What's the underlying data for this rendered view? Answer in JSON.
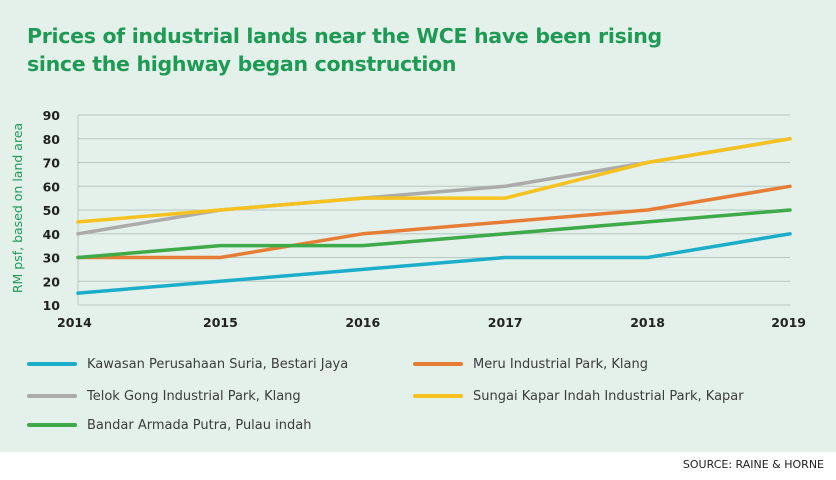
{
  "title": {
    "line1": "Prices of industrial lands near the WCE have been rising",
    "line2": "since the highway began construction"
  },
  "source": "SOURCE: RAINE & HORNE",
  "colors": {
    "background": "#e3f1ea",
    "title": "#1f9a55",
    "grid": "#b9c8c0"
  },
  "chart_data": {
    "type": "line",
    "title": "Prices of industrial lands near the WCE have been rising since the highway began construction",
    "xlabel": "",
    "ylabel": "RM psf, based on land area",
    "x": [
      "2014",
      "2015",
      "2016",
      "2017",
      "2018",
      "2019"
    ],
    "yticks": [
      "10",
      "20",
      "30",
      "40",
      "50",
      "60",
      "70",
      "80",
      "90"
    ],
    "ylim": [
      10,
      90
    ],
    "grid": true,
    "legend_position": "bottom",
    "series": [
      {
        "name": "Kawasan Perusahaan Suria, Bestari Jaya",
        "color": "#1badc9",
        "values": [
          15,
          20,
          25,
          30,
          30,
          40
        ]
      },
      {
        "name": "Meru Industrial Park, Klang",
        "color": "#e77d34",
        "values": [
          30,
          30,
          40,
          45,
          50,
          60
        ]
      },
      {
        "name": "Telok Gong Industrial Park, Klang",
        "color": "#ababab",
        "values": [
          40,
          50,
          55,
          60,
          70,
          80
        ]
      },
      {
        "name": "Sungai Kapar Indah Industrial Park, Kapar",
        "color": "#f7c11e",
        "values": [
          45,
          50,
          55,
          55,
          70,
          80
        ]
      },
      {
        "name": "Bandar Armada Putra, Pulau indah",
        "color": "#3faa48",
        "values": [
          30,
          35,
          35,
          40,
          45,
          50
        ]
      }
    ]
  }
}
